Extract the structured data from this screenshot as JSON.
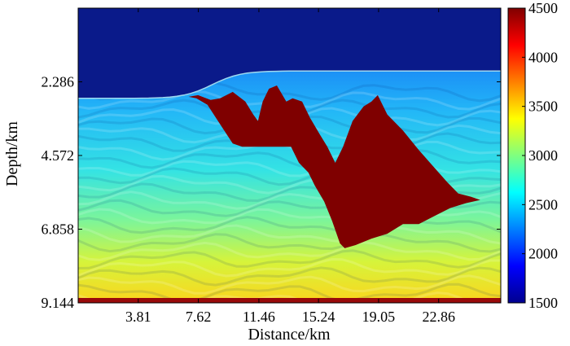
{
  "chart_data": {
    "type": "heatmap",
    "title": "",
    "xlabel": "Distance/km",
    "ylabel": "Depth/km",
    "xlim": [
      0,
      26.8
    ],
    "ylim": [
      0,
      9.144
    ],
    "y_inverted": true,
    "x_ticks": [
      "3.81",
      "7.62",
      "11.46",
      "15.24",
      "19.05",
      "22.86"
    ],
    "x_tick_values": [
      3.81,
      7.62,
      11.46,
      15.24,
      19.05,
      22.86
    ],
    "y_ticks": [
      "2.286",
      "4.572",
      "6.858",
      "9.144"
    ],
    "y_tick_values": [
      2.286,
      4.572,
      6.858,
      9.144
    ],
    "colorbar": {
      "min": 1500,
      "max": 4500,
      "ticks": [
        "4500",
        "4000",
        "3500",
        "3000",
        "2500",
        "2000",
        "1500"
      ],
      "tick_values": [
        4500,
        4000,
        3500,
        3000,
        2500,
        2000,
        1500
      ],
      "colormap": "jet"
    },
    "regions": {
      "water_velocity": 1500,
      "salt_velocity": 4500,
      "sediment_velocity_top": 2000,
      "sediment_velocity_bottom": 3700,
      "seafloor_depth_left": 2.8,
      "seafloor_depth_right": 1.95,
      "salt_body_outline": [
        [
          7.0,
          2.75
        ],
        [
          7.6,
          2.7
        ],
        [
          8.4,
          2.85
        ],
        [
          9.0,
          2.8
        ],
        [
          9.8,
          2.6
        ],
        [
          10.6,
          2.9
        ],
        [
          11.1,
          3.3
        ],
        [
          11.4,
          3.5
        ],
        [
          11.7,
          2.9
        ],
        [
          12.1,
          2.5
        ],
        [
          12.6,
          2.4
        ],
        [
          13.2,
          2.9
        ],
        [
          13.6,
          2.8
        ],
        [
          14.2,
          2.9
        ],
        [
          14.7,
          3.4
        ],
        [
          15.3,
          3.9
        ],
        [
          15.8,
          4.3
        ],
        [
          16.3,
          4.8
        ],
        [
          16.8,
          4.3
        ],
        [
          17.4,
          3.5
        ],
        [
          18.1,
          3.05
        ],
        [
          18.6,
          2.9
        ],
        [
          19.0,
          2.7
        ],
        [
          19.6,
          3.3
        ],
        [
          20.6,
          3.8
        ],
        [
          21.6,
          4.4
        ],
        [
          22.5,
          4.9
        ],
        [
          23.4,
          5.4
        ],
        [
          24.1,
          5.75
        ],
        [
          24.9,
          5.85
        ],
        [
          25.5,
          5.95
        ],
        [
          24.6,
          6.05
        ],
        [
          23.6,
          6.2
        ],
        [
          22.6,
          6.45
        ],
        [
          21.6,
          6.7
        ],
        [
          20.6,
          6.7
        ],
        [
          19.6,
          7.0
        ],
        [
          18.6,
          7.15
        ],
        [
          17.6,
          7.35
        ],
        [
          16.9,
          7.45
        ],
        [
          16.6,
          7.3
        ],
        [
          16.1,
          6.6
        ],
        [
          15.6,
          6.0
        ],
        [
          15.0,
          5.5
        ],
        [
          14.6,
          5.1
        ],
        [
          14.0,
          4.8
        ],
        [
          13.5,
          4.3
        ],
        [
          12.6,
          4.3
        ],
        [
          11.6,
          4.3
        ],
        [
          10.4,
          4.3
        ],
        [
          9.8,
          4.2
        ],
        [
          9.4,
          3.9
        ],
        [
          8.8,
          3.45
        ],
        [
          8.2,
          3.0
        ],
        [
          7.5,
          2.8
        ]
      ]
    }
  }
}
